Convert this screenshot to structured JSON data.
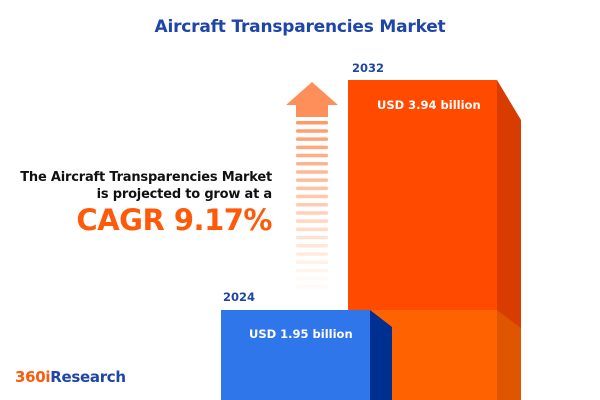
{
  "title": "Aircraft Transparencies Market",
  "description_line1": "The Aircraft Transparencies  Market",
  "description_line2": "is projected to grow at a",
  "cagr": "CAGR 9.17%",
  "logo": {
    "part1": "360i",
    "part2": "Research"
  },
  "colors": {
    "bar_2024": "#2f76ea",
    "bar_2024_side": "#00308f",
    "bar_2032": "#ff4a00",
    "bar_2032_lower": "#ff6200",
    "bar_2032_side": "#d83c00",
    "accent": "#ff5a0a",
    "title": "#1f45a8"
  },
  "icons": {
    "growth": "arrow-up-icon"
  },
  "chart_data": {
    "type": "bar",
    "categories": [
      "2024",
      "2032"
    ],
    "values": [
      1.95,
      3.94
    ],
    "unit": "USD billion",
    "labels": [
      "USD 1.95 billion",
      "USD 3.94 billion"
    ],
    "title": "Aircraft Transparencies Market",
    "grid": false
  }
}
